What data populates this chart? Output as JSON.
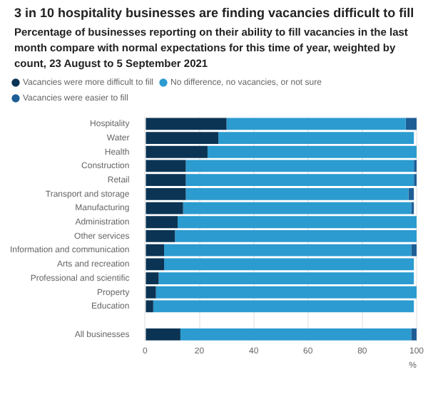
{
  "chart_data": {
    "type": "bar",
    "orientation": "horizontal",
    "stacked": true,
    "title": "3 in 10 hospitality businesses are finding vacancies difficult to fill",
    "subtitle": "Percentage of businesses reporting on their ability to fill vacancies in the last month compare with normal expectations for this time of year, weighted by count, 23 August to 5 September 2021",
    "xlabel": "%",
    "categories": [
      "Hospitality",
      "Water",
      "Health",
      "Construction",
      "Retail",
      "Transport and storage",
      "Manufacturing",
      "Administration",
      "Other services",
      "Information and communication",
      "Arts and recreation",
      "Professional and scientific",
      "Property",
      "Education",
      null,
      "All businesses"
    ],
    "series": [
      {
        "name": "Vacancies were more difficult to fill",
        "color": "#0b3454",
        "values": [
          30,
          27,
          23,
          15,
          15,
          15,
          14,
          12,
          11,
          7,
          7,
          5,
          4,
          3,
          null,
          13
        ]
      },
      {
        "name": "No difference, no vacancies, or not sure",
        "color": "#2b9bd0",
        "values": [
          66,
          72,
          77,
          84,
          84,
          82,
          84,
          88,
          89,
          91,
          92,
          94,
          96,
          96,
          null,
          85
        ]
      },
      {
        "name": "Vacancies were easier to fill",
        "color": "#1d5e96",
        "values": [
          4,
          0,
          0,
          1,
          1,
          2,
          1,
          0,
          0,
          2,
          0,
          0,
          0,
          0,
          null,
          2
        ]
      }
    ],
    "xlim": [
      0,
      100
    ],
    "xticks": [
      0,
      20,
      40,
      60,
      80,
      100
    ],
    "grid": "x",
    "legend": "top left"
  }
}
